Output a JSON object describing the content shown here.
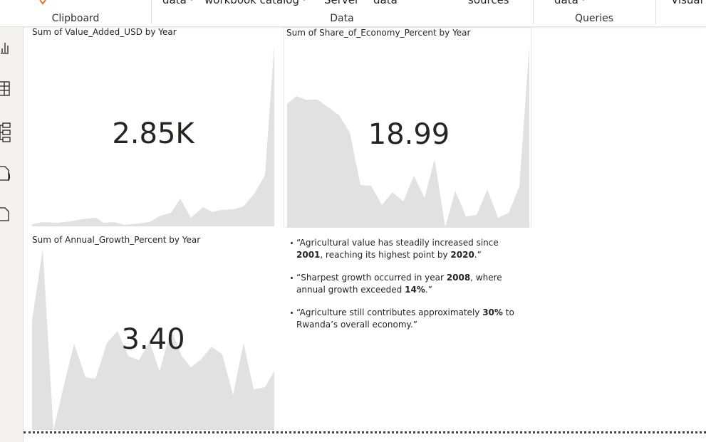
{
  "ribbon": {
    "top_items": [
      "data ·",
      "workbook catalog ·",
      "Server",
      "data",
      "sources",
      "data ·",
      "Visual"
    ],
    "groups": [
      "Clipboard",
      "Data",
      "Queries"
    ]
  },
  "cards": [
    {
      "title": "Sum of Value_Added_USD by Year",
      "value": "2.85K"
    },
    {
      "title": "Sum of Share_of_Economy_Percent by Year",
      "value": "18.99"
    },
    {
      "title": "Sum of Annual_Growth_Percent by Year",
      "value": "3.40"
    }
  ],
  "text_box": {
    "bullets": [
      {
        "parts": [
          {
            "text": "“Agricultural value has steadily increased since "
          },
          {
            "text": "2001",
            "bold": true
          },
          {
            "text": ", reaching its highest point by "
          },
          {
            "text": "2020",
            "bold": true
          },
          {
            "text": ".”"
          }
        ]
      },
      {
        "parts": [
          {
            "text": "“Sharpest growth occurred in year "
          },
          {
            "text": "2008",
            "bold": true
          },
          {
            "text": ", where annual growth exceeded "
          },
          {
            "text": "14%",
            "bold": true
          },
          {
            "text": ".”"
          }
        ]
      },
      {
        "parts": [
          {
            "text": "“Agriculture still contributes approximately "
          },
          {
            "text": "30%",
            "bold": true
          },
          {
            "text": " to Rwanda’s overall economy.”"
          }
        ]
      }
    ]
  }
}
